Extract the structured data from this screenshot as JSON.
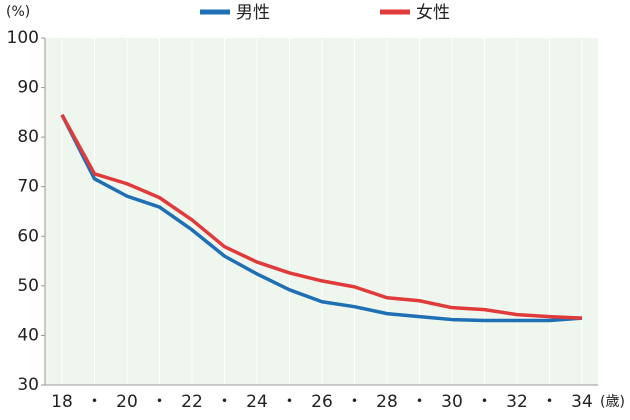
{
  "chart_data": {
    "type": "line",
    "y_label": "(%)",
    "x_label": "(歳)",
    "categories": [
      "18",
      "・",
      "20",
      "・",
      "22",
      "・",
      "24",
      "・",
      "26",
      "・",
      "28",
      "・",
      "30",
      "・",
      "32",
      "・",
      "34"
    ],
    "series": [
      {
        "name": "男性",
        "color": "#1f6fb5",
        "values": [
          84.5,
          71.6,
          68.1,
          65.9,
          61.3,
          56.0,
          52.4,
          49.2,
          46.8,
          45.8,
          44.4,
          43.8,
          43.2,
          43.0,
          43.0,
          43.0,
          43.5
        ]
      },
      {
        "name": "女性",
        "color": "#e03a3a",
        "values": [
          84.5,
          72.6,
          70.6,
          67.8,
          63.3,
          57.9,
          54.8,
          52.6,
          51.0,
          49.8,
          47.6,
          47.0,
          45.6,
          45.2,
          44.2,
          43.8,
          43.5
        ]
      }
    ],
    "ylim": [
      30,
      100
    ],
    "yticks": [
      30,
      40,
      50,
      60,
      70,
      80,
      90,
      100
    ],
    "background": "#eef6ee",
    "grid": true,
    "legend": "top"
  }
}
